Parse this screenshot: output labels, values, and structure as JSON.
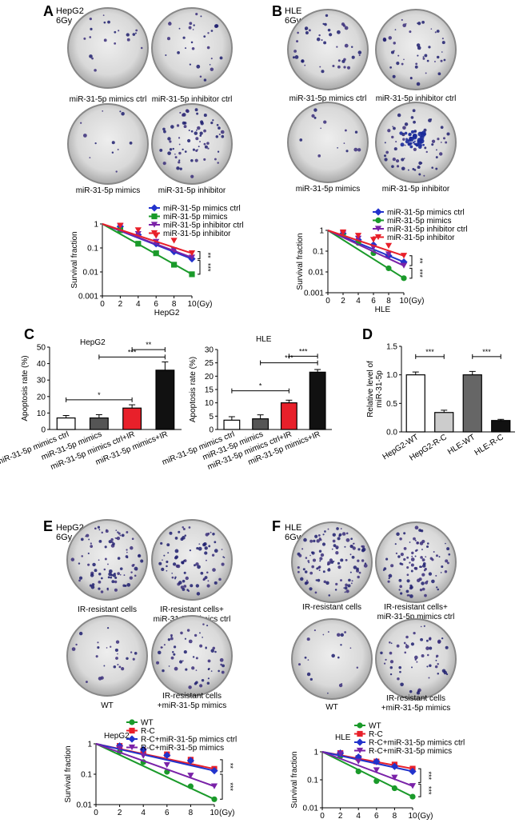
{
  "colors": {
    "blue": "#2233cc",
    "green": "#1a9a2a",
    "purple": "#7a22a8",
    "red": "#e8202a",
    "black": "#111111",
    "gray": "#555555",
    "light_gray": "#cccccc",
    "dark_gray": "#666666"
  },
  "panels": {
    "A": {
      "letter": "A",
      "cell": "HepG2",
      "dose": "6Gy",
      "dish_labels": [
        "miR-31-5p mimics ctrl",
        "miR-31-5p inhibitor ctrl",
        "miR-31-5p mimics",
        "miR-31-5p inhibitor"
      ]
    },
    "B": {
      "letter": "B",
      "cell": "HLE",
      "dose": "6Gy",
      "dish_labels": [
        "miR-31-5p mimics ctrl",
        "miR-31-5p inhibitor ctrl",
        "miR-31-5p mimics",
        "miR-31-5p inhibitor"
      ]
    },
    "C": {
      "letter": "C"
    },
    "D": {
      "letter": "D"
    },
    "E": {
      "letter": "E",
      "cell": "HepG2",
      "dose": "6Gy",
      "dish_labels": [
        "IR-resistant cells",
        "IR-resistant cells+",
        "miR-31-5p mimics ctrl",
        "WT",
        "IR-resistant cells",
        "+miR-31-5p mimics"
      ]
    },
    "F": {
      "letter": "F",
      "cell": "HLE",
      "dose": "6Gy",
      "dish_labels": [
        "IR-resistant cells",
        "IR-resistant cells+",
        "miR-31-5p mimics ctrl",
        "WT",
        "IR-resistant cells",
        "+miR-31-5p mimics"
      ]
    }
  },
  "chart_data": [
    {
      "id": "A-survival",
      "type": "line",
      "title": "",
      "xlabel": "HepG2",
      "x_unit": "(Gy)",
      "ylabel": "Survival fraction",
      "yscale": "log",
      "ylim": [
        0.001,
        1
      ],
      "xlim": [
        0,
        10
      ],
      "x_ticks": [
        "0",
        "2",
        "4",
        "6",
        "8",
        "10"
      ],
      "y_ticks": [
        "0.001",
        "0.01",
        "0.1",
        "1"
      ],
      "series": [
        {
          "name": "miR-31-5p mimics ctrl",
          "color": "#2233cc",
          "marker": "diamond",
          "x": [
            0,
            2,
            4,
            6,
            8,
            10
          ],
          "y": [
            1,
            0.78,
            0.35,
            0.15,
            0.07,
            0.035
          ]
        },
        {
          "name": "miR-31-5p mimics",
          "color": "#1a9a2a",
          "marker": "square",
          "x": [
            0,
            2,
            4,
            6,
            8,
            10
          ],
          "y": [
            1,
            0.55,
            0.15,
            0.06,
            0.02,
            0.008
          ]
        },
        {
          "name": "miR-31-5p inhibitor ctrl",
          "color": "#7a22a8",
          "marker": "triangle-down",
          "x": [
            0,
            2,
            4,
            6,
            8,
            10
          ],
          "y": [
            1,
            0.8,
            0.38,
            0.18,
            0.08,
            0.04
          ]
        },
        {
          "name": "miR-31-5p inhibitor",
          "color": "#e8202a",
          "marker": "triangle-down",
          "x": [
            0,
            2,
            4,
            6,
            8,
            10
          ],
          "y": [
            1,
            0.85,
            0.55,
            0.32,
            0.2,
            0.06
          ]
        }
      ],
      "significance": [
        "**",
        "***"
      ]
    },
    {
      "id": "B-survival",
      "type": "line",
      "title": "",
      "xlabel": "HLE",
      "x_unit": "(Gy)",
      "ylabel": "Survival fraction",
      "yscale": "log",
      "ylim": [
        0.001,
        1
      ],
      "xlim": [
        0,
        10
      ],
      "x_ticks": [
        "0",
        "2",
        "4",
        "6",
        "8",
        "10"
      ],
      "y_ticks": [
        "0.001",
        "0.01",
        "0.1",
        "1"
      ],
      "series": [
        {
          "name": "miR-31-5p mimics ctrl",
          "color": "#2233cc",
          "marker": "diamond",
          "x": [
            0,
            2,
            4,
            6,
            8,
            10
          ],
          "y": [
            1,
            0.7,
            0.35,
            0.2,
            0.06,
            0.03
          ]
        },
        {
          "name": "miR-31-5p mimics",
          "color": "#1a9a2a",
          "marker": "circle",
          "x": [
            0,
            2,
            4,
            6,
            8,
            10
          ],
          "y": [
            1,
            0.6,
            0.25,
            0.08,
            0.015,
            0.005
          ]
        },
        {
          "name": "miR-31-5p inhibitor ctrl",
          "color": "#7a22a8",
          "marker": "triangle-down",
          "x": [
            0,
            2,
            4,
            6,
            8,
            10
          ],
          "y": [
            1,
            0.7,
            0.4,
            0.15,
            0.07,
            0.02
          ]
        },
        {
          "name": "miR-31-5p inhibitor",
          "color": "#e8202a",
          "marker": "triangle-down",
          "x": [
            0,
            2,
            4,
            6,
            8,
            10
          ],
          "y": [
            1,
            0.8,
            0.55,
            0.35,
            0.18,
            0.06
          ]
        }
      ],
      "significance": [
        "**",
        "***"
      ]
    },
    {
      "id": "C-HepG2",
      "type": "bar",
      "title": "HepG2",
      "ylabel": "Apoptosis rate (%)",
      "ylim": [
        0,
        50
      ],
      "y_ticks": [
        "0",
        "10",
        "20",
        "30",
        "40",
        "50"
      ],
      "categories": [
        "miR-31-5p mimics ctrl",
        "miR-31-5p mimics",
        "miR-31-5p mimics ctrl+IR",
        "miR-31-5p mimics+IR"
      ],
      "values": [
        7,
        7,
        13,
        36
      ],
      "errors": [
        1.5,
        2,
        2,
        5
      ],
      "bar_colors": [
        "#ffffff",
        "#555555",
        "#e8202a",
        "#111111"
      ],
      "significance": [
        "*",
        "***",
        "**"
      ]
    },
    {
      "id": "C-HLE",
      "type": "bar",
      "title": "HLE",
      "ylabel": "Apoptosis rate (%)",
      "ylim": [
        0,
        30
      ],
      "y_ticks": [
        "0",
        "5",
        "10",
        "15",
        "20",
        "25",
        "30"
      ],
      "categories": [
        "miR-31-5p mimics ctrl",
        "miR-31-5p mimics",
        "miR-31-5p mimics ctrl+IR",
        "miR-31-5p mimics+IR"
      ],
      "values": [
        3.5,
        4,
        10,
        21.5
      ],
      "errors": [
        1.3,
        1.5,
        1,
        1
      ],
      "bar_colors": [
        "#ffffff",
        "#555555",
        "#e8202a",
        "#111111"
      ],
      "significance": [
        "*",
        "***",
        "***"
      ]
    },
    {
      "id": "D-relative",
      "type": "bar",
      "title": "",
      "ylabel": "Relative level of miR-31-5p",
      "ylabel_lines": [
        "Relative level of",
        "miR-31-5p"
      ],
      "ylim": [
        0,
        1.5
      ],
      "y_ticks": [
        "0.0",
        "0.5",
        "1.0",
        "1.5"
      ],
      "categories": [
        "HepG2-WT",
        "HepG2-R-C",
        "HLE-WT",
        "HLE-R-C"
      ],
      "values": [
        1.0,
        0.34,
        1.0,
        0.2
      ],
      "errors": [
        0.05,
        0.04,
        0.06,
        0.02
      ],
      "bar_colors": [
        "#ffffff",
        "#cccccc",
        "#666666",
        "#111111"
      ],
      "significance": [
        "***",
        "***"
      ]
    },
    {
      "id": "E-survival",
      "type": "line",
      "title": "HepG2",
      "xlabel": "",
      "x_unit": "(Gy)",
      "ylabel": "Survival fraction",
      "yscale": "log",
      "ylim": [
        0.01,
        1
      ],
      "xlim": [
        0,
        10
      ],
      "x_ticks": [
        "0",
        "2",
        "4",
        "6",
        "8",
        "10"
      ],
      "y_ticks": [
        "0.01",
        "0.1",
        "1"
      ],
      "series": [
        {
          "name": "WT",
          "color": "#1a9a2a",
          "marker": "circle",
          "x": [
            0,
            2,
            4,
            6,
            8,
            10
          ],
          "y": [
            1,
            0.55,
            0.25,
            0.12,
            0.04,
            0.015
          ]
        },
        {
          "name": "R-C",
          "color": "#e8202a",
          "marker": "square",
          "x": [
            0,
            2,
            4,
            6,
            8,
            10
          ],
          "y": [
            1,
            0.85,
            0.6,
            0.45,
            0.3,
            0.15
          ]
        },
        {
          "name": "R-C+miR-31-5p mimics ctrl",
          "color": "#2233cc",
          "marker": "diamond",
          "x": [
            0,
            2,
            4,
            6,
            8,
            10
          ],
          "y": [
            1,
            0.85,
            0.65,
            0.42,
            0.28,
            0.13
          ]
        },
        {
          "name": "R-C+miR-31-5p mimics",
          "color": "#7a22a8",
          "marker": "triangle-down",
          "x": [
            0,
            2,
            4,
            6,
            8,
            10
          ],
          "y": [
            1,
            0.7,
            0.4,
            0.2,
            0.09,
            0.04
          ]
        }
      ],
      "significance": [
        "**",
        "***"
      ]
    },
    {
      "id": "F-survival",
      "type": "line",
      "title": "HLE",
      "xlabel": "",
      "x_unit": "(Gy)",
      "ylabel": "Survival fraction",
      "yscale": "log",
      "ylim": [
        0.01,
        1
      ],
      "xlim": [
        0,
        10
      ],
      "x_ticks": [
        "0",
        "2",
        "4",
        "6",
        "8",
        "10"
      ],
      "y_ticks": [
        "0.01",
        "0.1",
        "1"
      ],
      "series": [
        {
          "name": "WT",
          "color": "#1a9a2a",
          "marker": "circle",
          "x": [
            0,
            2,
            4,
            6,
            8,
            10
          ],
          "y": [
            1,
            0.7,
            0.2,
            0.09,
            0.05,
            0.025
          ]
        },
        {
          "name": "R-C",
          "color": "#e8202a",
          "marker": "square",
          "x": [
            0,
            2,
            4,
            6,
            8,
            10
          ],
          "y": [
            1,
            0.9,
            0.6,
            0.45,
            0.35,
            0.25
          ]
        },
        {
          "name": "R-C+miR-31-5p mimics ctrl",
          "color": "#2233cc",
          "marker": "diamond",
          "x": [
            0,
            2,
            4,
            6,
            8,
            10
          ],
          "y": [
            1,
            0.9,
            0.65,
            0.45,
            0.3,
            0.2
          ]
        },
        {
          "name": "R-C+miR-31-5p mimics",
          "color": "#7a22a8",
          "marker": "triangle-down",
          "x": [
            0,
            2,
            4,
            6,
            8,
            10
          ],
          "y": [
            1,
            0.85,
            0.45,
            0.22,
            0.12,
            0.06
          ]
        }
      ],
      "significance": [
        "***",
        "***"
      ]
    }
  ]
}
